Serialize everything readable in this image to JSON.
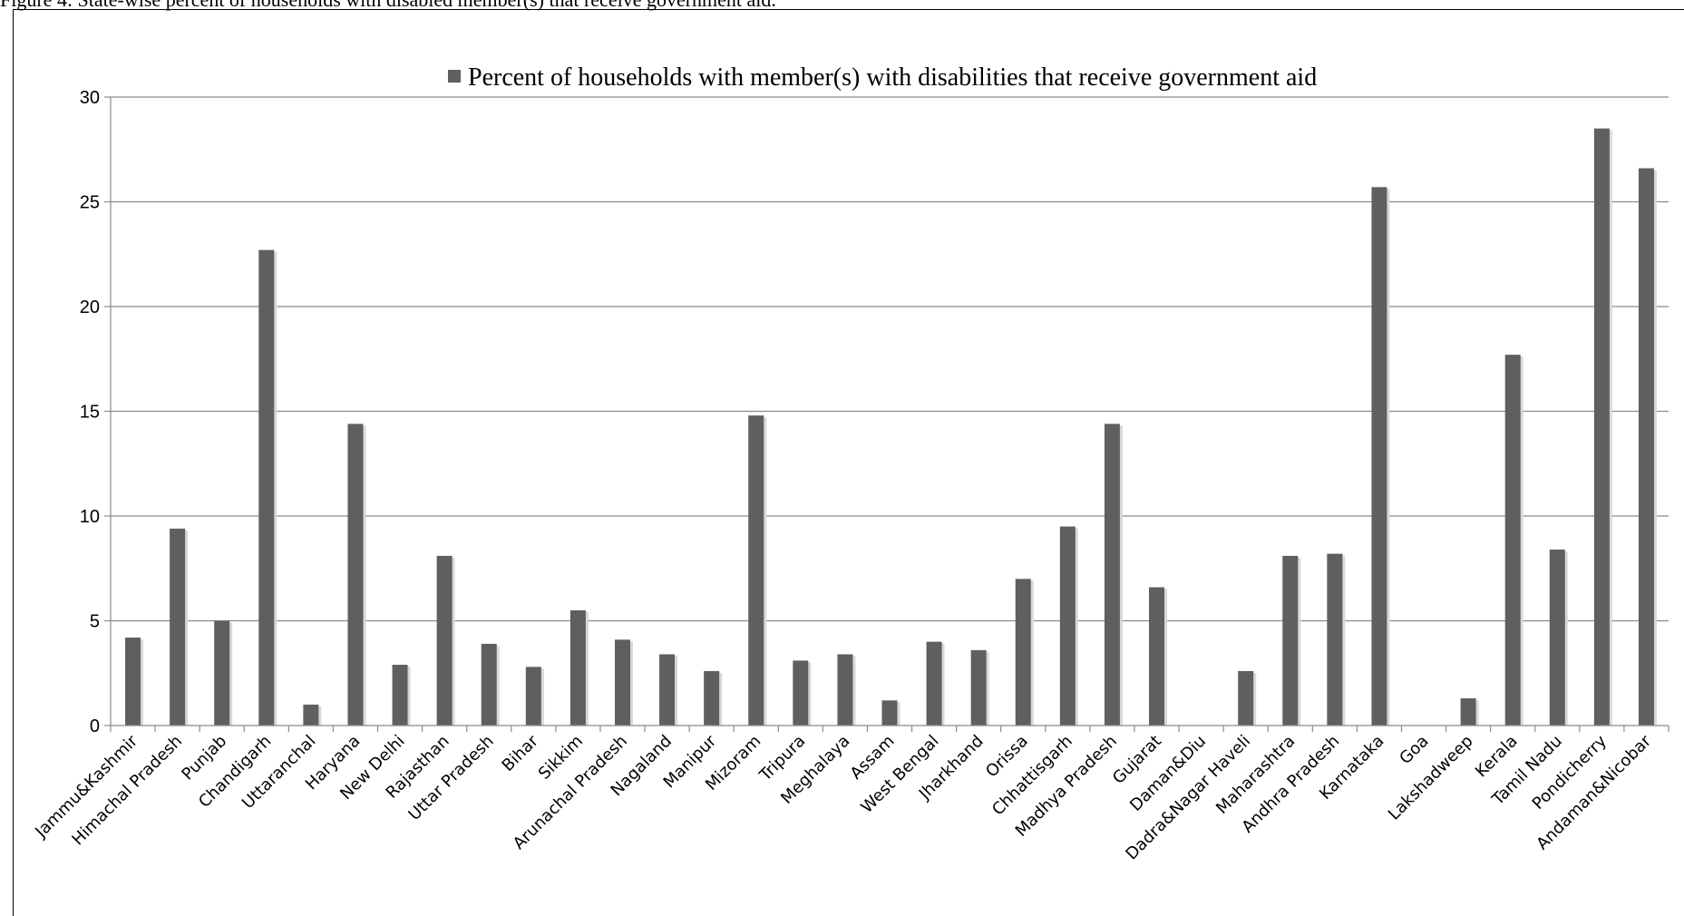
{
  "caption": "Figure 4: State-wise percent of households with disabled member(s) that receive government aid.",
  "chart_data": {
    "type": "bar",
    "title": "",
    "xlabel": "",
    "ylabel": "",
    "ylim": [
      0,
      30
    ],
    "yticks": [
      0,
      5,
      10,
      15,
      20,
      25,
      30
    ],
    "grid": true,
    "legend_position": "top",
    "bar_color": "#5f5f5f",
    "categories": [
      "Jammu&Kashmir",
      "Himachal Pradesh",
      "Punjab",
      "Chandigarh",
      "Uttaranchal",
      "Haryana",
      "New Delhi",
      "Rajasthan",
      "Uttar Pradesh",
      "Bihar",
      "Sikkim",
      "Arunachal Pradesh",
      "Nagaland",
      "Manipur",
      "Mizoram",
      "Tripura",
      "Meghalaya",
      "Assam",
      "West Bengal",
      "Jharkhand",
      "Orissa",
      "Chhattisgarh",
      "Madhya Pradesh",
      "Gujarat",
      "Daman&Diu",
      "Dadra&Nagar Haveli",
      "Maharashtra",
      "Andhra Pradesh",
      "Karnataka",
      "Goa",
      "Lakshadweep",
      "Kerala",
      "Tamil Nadu",
      "Pondicherry",
      "Andaman&Nicobar"
    ],
    "series": [
      {
        "name": "Percent of households with member(s) with disabilities that receive government aid",
        "values": [
          4.2,
          9.4,
          5.0,
          22.7,
          1.0,
          14.4,
          2.9,
          8.1,
          3.9,
          2.8,
          5.5,
          4.1,
          3.4,
          2.6,
          14.8,
          3.1,
          3.4,
          1.2,
          4.0,
          3.6,
          7.0,
          9.5,
          14.4,
          6.6,
          0,
          2.6,
          8.1,
          8.2,
          25.7,
          0,
          1.3,
          17.7,
          8.4,
          28.5,
          26.6
        ]
      }
    ]
  }
}
